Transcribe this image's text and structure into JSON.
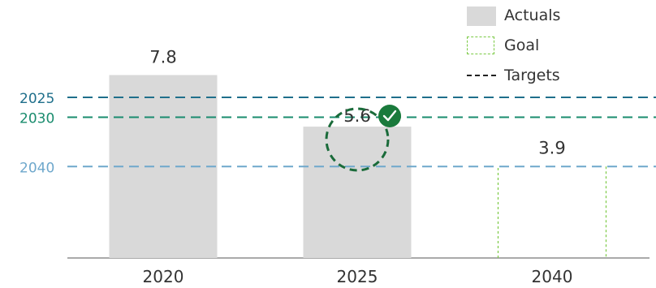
{
  "legend": {
    "actuals": "Actuals",
    "goal": "Goal",
    "targets": "Targets"
  },
  "colors": {
    "actual_bar": "#d9d9d9",
    "goal_border": "#7ac943",
    "target_2025": "#1f6f8b",
    "target_2030": "#1a8c6e",
    "target_2040": "#6fa8cc",
    "goal_circle": "#1a6b3a",
    "check_badge": "#1a7a3c",
    "axis": "#555555",
    "text": "#333333"
  },
  "chart_data": {
    "type": "bar",
    "categories": [
      "2020",
      "2025",
      "2040"
    ],
    "series": [
      {
        "name": "Actuals",
        "kind": "actual",
        "values": [
          7.8,
          5.6,
          null
        ]
      },
      {
        "name": "Goal",
        "kind": "goal",
        "values": [
          null,
          null,
          3.9
        ]
      }
    ],
    "data_labels": [
      "7.8",
      "5.6",
      "3.9"
    ],
    "targets": [
      {
        "label": "2025",
        "value": 6.85,
        "color": "#1f6f8b"
      },
      {
        "label": "2030",
        "value": 6.0,
        "color": "#1a8c6e"
      },
      {
        "label": "2040",
        "value": 3.9,
        "color": "#6fa8cc"
      }
    ],
    "highlight": {
      "category": "2025",
      "style": "dashed-circle-with-check"
    },
    "ylim": [
      0,
      11
    ],
    "grid": false,
    "legend_position": "top-right",
    "title": "",
    "xlabel": "",
    "ylabel": ""
  }
}
